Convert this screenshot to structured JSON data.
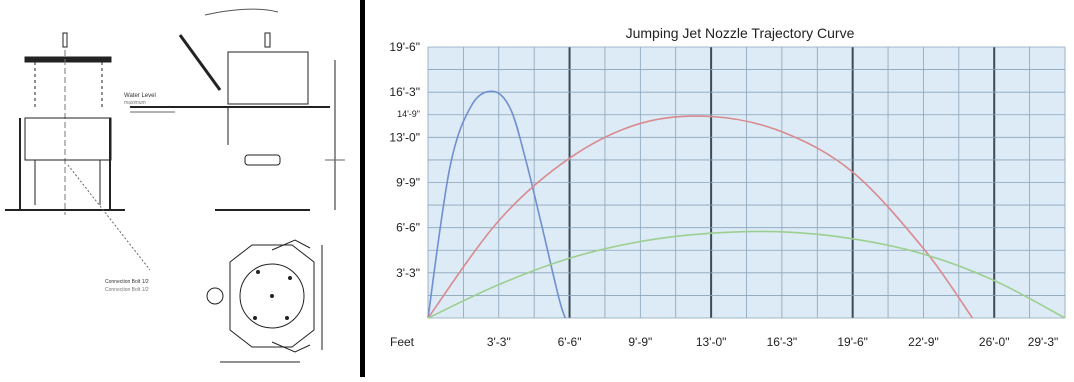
{
  "drawing": {
    "water_level_label": "Water Level",
    "water_level_sub": "maximum",
    "note_line1": "Connection Bolt 1/2",
    "note_line2": "Connection Bolt 1/2"
  },
  "colors": {
    "plot_background": "#ddebf7",
    "grid": "#8aa4b8",
    "major_grid": "#3a4a56",
    "series_blue": "#6f8fd0",
    "series_red": "#d98a8f",
    "series_green": "#9ccf8f"
  },
  "chart_data": {
    "type": "line",
    "title": "Jumping Jet Nozzle Trajectory Curve",
    "x_unit_label": "Feet",
    "x_tick_labels": [
      "3'-3\"",
      "6'-6\"",
      "9'-9\"",
      "13'-0\"",
      "16'-3\"",
      "19'-6\"",
      "22'-9\"",
      "26'-0\"",
      "29'-3\""
    ],
    "y_tick_labels": [
      "3'-3\"",
      "6'-6\"",
      "9'-9\"",
      "13'-0\"",
      "14'-9\"",
      "16'-3\"",
      "19'-6\""
    ],
    "x_tick_values_ft": [
      3.25,
      6.5,
      9.75,
      13.0,
      16.25,
      19.5,
      22.75,
      26.0,
      29.25
    ],
    "y_tick_values_ft": [
      3.25,
      6.5,
      9.75,
      13.0,
      14.75,
      16.25,
      19.5
    ],
    "xlim": [
      0,
      29.25
    ],
    "ylim": [
      0,
      19.5
    ],
    "grid": true,
    "legend": "none",
    "series": [
      {
        "color": "#6f8fd0",
        "x": [
          0,
          1.0,
          2.0,
          3.0,
          3.8,
          4.5,
          5.2,
          6.0,
          6.3
        ],
        "y": [
          0,
          10.8,
          15.3,
          16.3,
          15.0,
          11.3,
          6.8,
          1.5,
          0
        ]
      },
      {
        "color": "#d98a8f",
        "x": [
          0,
          3.25,
          6.5,
          9.75,
          13.0,
          16.25,
          19.5,
          22.75,
          25.0
        ],
        "y": [
          0,
          7.0,
          11.5,
          14.0,
          14.5,
          13.4,
          10.5,
          5.0,
          0
        ]
      },
      {
        "color": "#9ccf8f",
        "x": [
          0,
          3.25,
          6.5,
          9.75,
          13.0,
          16.25,
          19.5,
          22.75,
          26.0,
          29.25
        ],
        "y": [
          0,
          2.4,
          4.3,
          5.5,
          6.1,
          6.2,
          5.7,
          4.6,
          2.7,
          0
        ]
      }
    ]
  }
}
